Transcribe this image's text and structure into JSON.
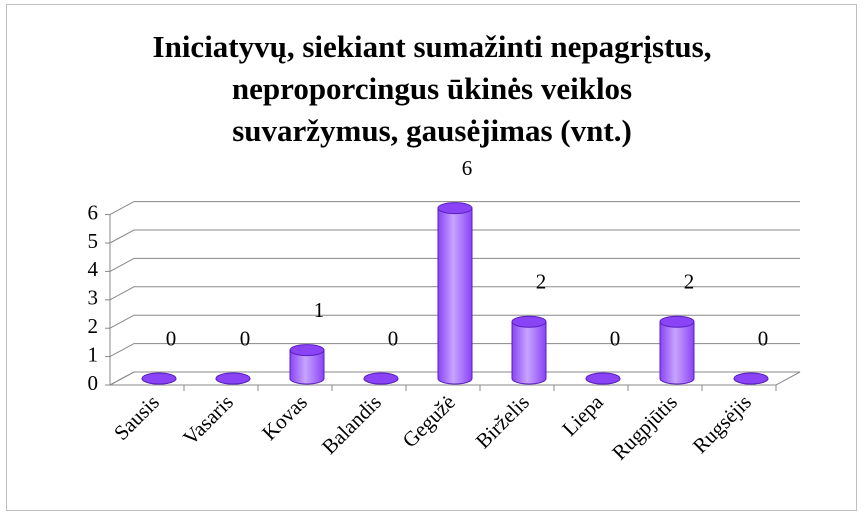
{
  "chart_data": {
    "type": "bar",
    "title": [
      "Iniciatyvų, siekiant sumažinti nepagrįstus,",
      "neproporcingus ūkinės veiklos",
      "suvaržymus, gausėjimas (vnt.)"
    ],
    "categories": [
      "Sausis",
      "Vasaris",
      "Kovas",
      "Balandis",
      "Gegužė",
      "Birželis",
      "Liepa",
      "Rugpjūtis",
      "Rugsėjis"
    ],
    "values": [
      0,
      0,
      1,
      0,
      6,
      2,
      0,
      2,
      0
    ],
    "color": "#8a44f5",
    "ylim": [
      0,
      6
    ],
    "yticks": [
      0,
      1,
      2,
      3,
      4,
      5,
      6
    ],
    "grid": true
  }
}
